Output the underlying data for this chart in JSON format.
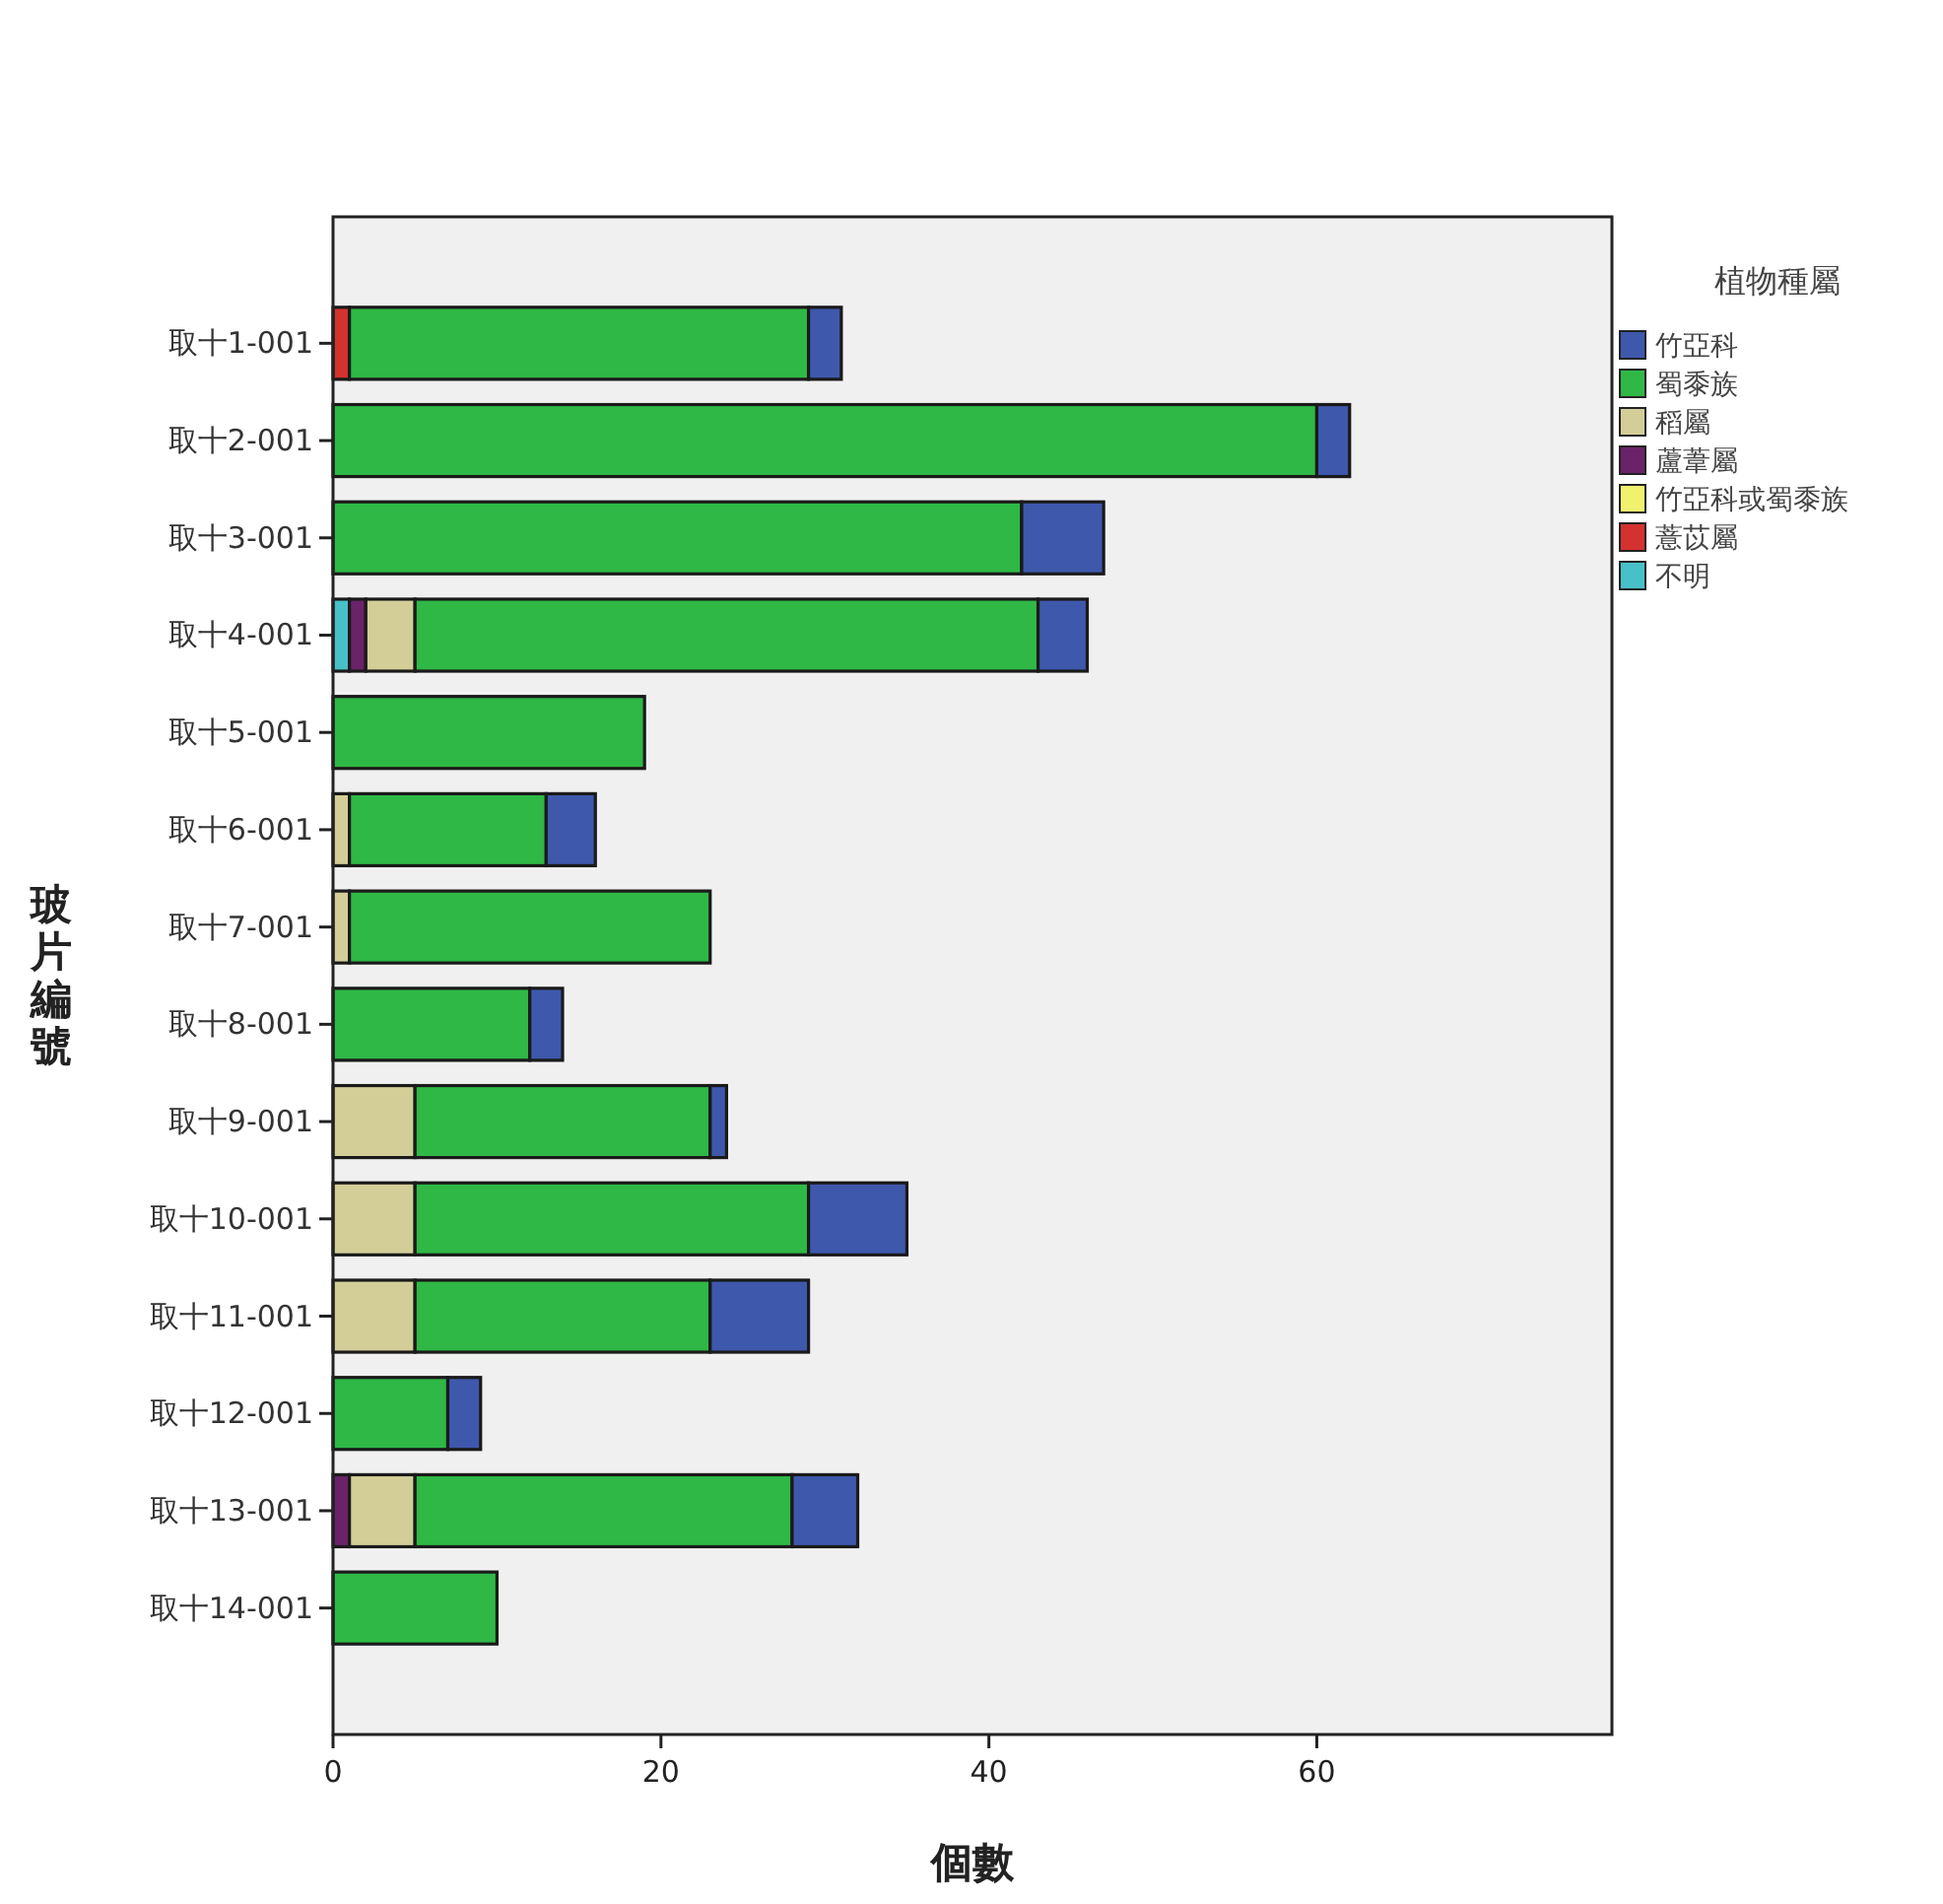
{
  "chart_data": {
    "type": "bar",
    "orientation": "horizontal",
    "stacked": true,
    "categories": [
      "取十1-001",
      "取十2-001",
      "取十3-001",
      "取十4-001",
      "取十5-001",
      "取十6-001",
      "取十7-001",
      "取十8-001",
      "取十9-001",
      "取十10-001",
      "取十11-001",
      "取十12-001",
      "取十13-001",
      "取十14-001"
    ],
    "series": [
      {
        "name": "不明",
        "color": "#48c0c8",
        "values": [
          0,
          0,
          0,
          1,
          0,
          0,
          0,
          0,
          0,
          0,
          0,
          0,
          0,
          0
        ]
      },
      {
        "name": "薏苡屬",
        "color": "#d3322f",
        "values": [
          1,
          0,
          0,
          0,
          0,
          0,
          0,
          0,
          0,
          0,
          0,
          0,
          0,
          0
        ]
      },
      {
        "name": "竹亞科或蜀黍族",
        "color": "#f0f26e",
        "values": [
          0,
          0,
          0,
          0,
          0,
          0,
          0,
          0,
          0,
          0,
          0,
          0,
          0,
          0
        ]
      },
      {
        "name": "蘆葦屬",
        "color": "#6a2368",
        "values": [
          0,
          0,
          0,
          1,
          0,
          0,
          0,
          0,
          0,
          0,
          0,
          0,
          1,
          0
        ]
      },
      {
        "name": "稻屬",
        "color": "#d3ce97",
        "values": [
          0,
          0,
          0,
          3,
          0,
          1,
          1,
          0,
          5,
          5,
          5,
          0,
          4,
          0
        ]
      },
      {
        "name": "蜀黍族",
        "color": "#2fb845",
        "values": [
          28,
          60,
          42,
          38,
          19,
          12,
          22,
          12,
          18,
          24,
          18,
          7,
          23,
          10
        ]
      },
      {
        "name": "竹亞科",
        "color": "#3e58ac",
        "values": [
          2,
          2,
          5,
          3,
          0,
          3,
          0,
          2,
          1,
          6,
          6,
          2,
          4,
          0
        ]
      }
    ],
    "xlabel": "個數",
    "ylabel": "玻片編號",
    "legend_title": "植物種屬",
    "legend": "right",
    "xlim": [
      0,
      78
    ],
    "xticks": [
      0,
      20,
      40,
      60
    ]
  }
}
